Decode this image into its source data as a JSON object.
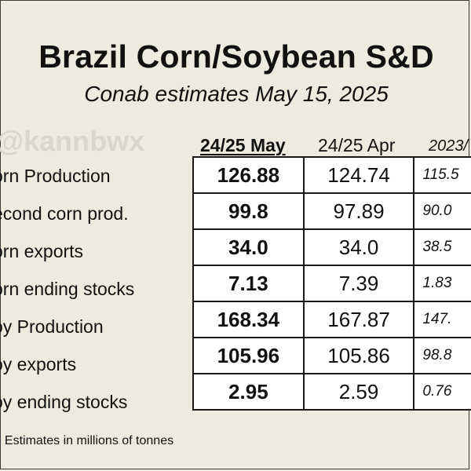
{
  "title": "Brazil Corn/Soybean S&D",
  "subtitle": "Conab estimates May 15, 2025",
  "watermark": "@kannbwx",
  "columns": [
    "24/25 May",
    "24/25 Apr",
    "2023/"
  ],
  "rows": [
    {
      "label": "orn Production",
      "may": "126.88",
      "apr": "124.74",
      "prev": "115.5"
    },
    {
      "label": "econd corn prod.",
      "may": "99.8",
      "apr": "97.89",
      "prev": "90.0"
    },
    {
      "label": "orn exports",
      "may": "34.0",
      "apr": "34.0",
      "prev": "38.5"
    },
    {
      "label": "orn ending stocks",
      "may": "7.13",
      "apr": "7.39",
      "prev": "1.83"
    },
    {
      "label": "oy Production",
      "may": "168.34",
      "apr": "167.87",
      "prev": "147."
    },
    {
      "label": "oy exports",
      "may": "105.96",
      "apr": "105.86",
      "prev": "98.8"
    },
    {
      "label": "oy ending stocks",
      "may": "2.95",
      "apr": "2.59",
      "prev": "0.76"
    }
  ],
  "footnote": ": Estimates in millions of tonnes"
}
